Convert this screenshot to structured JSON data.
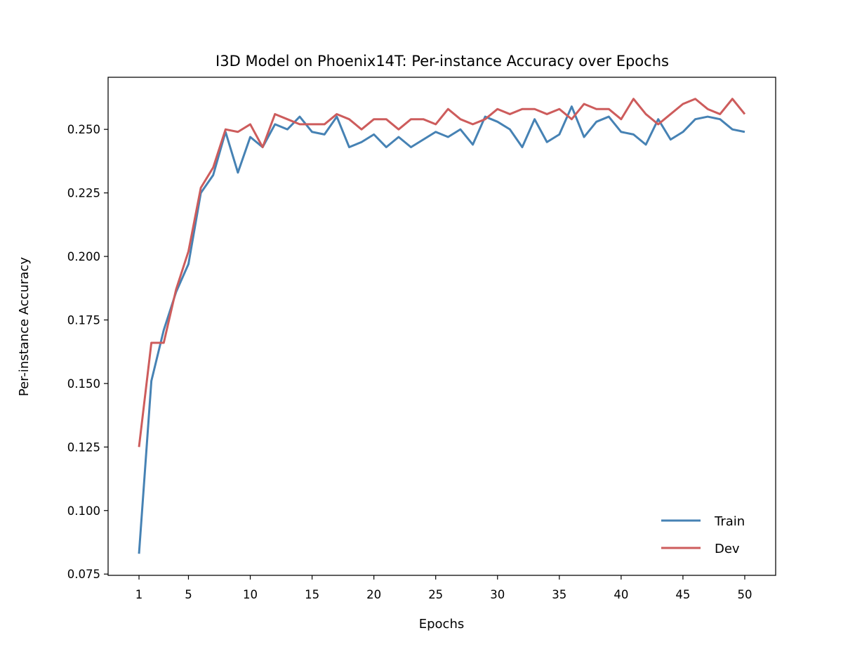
{
  "chart_data": {
    "type": "line",
    "title": "I3D Model on Phoenix14T: Per-instance Accuracy over Epochs",
    "xlabel": "Epochs",
    "ylabel": "Per-instance Accuracy",
    "xlim": [
      -1.5,
      52.5
    ],
    "ylim": [
      0.0745,
      0.2705
    ],
    "x_ticks": [
      1,
      5,
      10,
      15,
      20,
      25,
      30,
      35,
      40,
      45,
      50
    ],
    "y_ticks": [
      0.075,
      0.1,
      0.125,
      0.15,
      0.175,
      0.2,
      0.225,
      0.25
    ],
    "y_tick_labels": [
      "0.075",
      "0.100",
      "0.125",
      "0.150",
      "0.175",
      "0.200",
      "0.225",
      "0.250"
    ],
    "grid": false,
    "legend_position": "lower-right",
    "x": [
      1,
      2,
      3,
      4,
      5,
      6,
      7,
      8,
      9,
      10,
      11,
      12,
      13,
      14,
      15,
      16,
      17,
      18,
      19,
      20,
      21,
      22,
      23,
      24,
      25,
      26,
      27,
      28,
      29,
      30,
      31,
      32,
      33,
      34,
      35,
      36,
      37,
      38,
      39,
      40,
      41,
      42,
      43,
      44,
      45,
      46,
      47,
      48,
      49,
      50
    ],
    "series": [
      {
        "name": "Train",
        "color": "#4682b4",
        "values": [
          0.083,
          0.151,
          0.171,
          0.186,
          0.197,
          0.225,
          0.232,
          0.249,
          0.233,
          0.247,
          0.243,
          0.252,
          0.25,
          0.255,
          0.249,
          0.248,
          0.255,
          0.243,
          0.245,
          0.248,
          0.243,
          0.247,
          0.243,
          0.246,
          0.249,
          0.247,
          0.25,
          0.244,
          0.255,
          0.253,
          0.25,
          0.243,
          0.254,
          0.245,
          0.248,
          0.259,
          0.247,
          0.253,
          0.255,
          0.249,
          0.248,
          0.244,
          0.254,
          0.246,
          0.249,
          0.254,
          0.255,
          0.254,
          0.25,
          0.249
        ]
      },
      {
        "name": "Dev",
        "color": "#cd5c5c",
        "values": [
          0.125,
          0.166,
          0.166,
          0.187,
          0.202,
          0.227,
          0.235,
          0.25,
          0.249,
          0.252,
          0.243,
          0.256,
          0.254,
          0.252,
          0.252,
          0.252,
          0.256,
          0.254,
          0.25,
          0.254,
          0.254,
          0.25,
          0.254,
          0.254,
          0.252,
          0.258,
          0.254,
          0.252,
          0.254,
          0.258,
          0.256,
          0.258,
          0.258,
          0.256,
          0.258,
          0.254,
          0.26,
          0.258,
          0.258,
          0.254,
          0.262,
          0.256,
          0.252,
          0.256,
          0.26,
          0.262,
          0.258,
          0.256,
          0.262,
          0.256
        ]
      }
    ]
  }
}
